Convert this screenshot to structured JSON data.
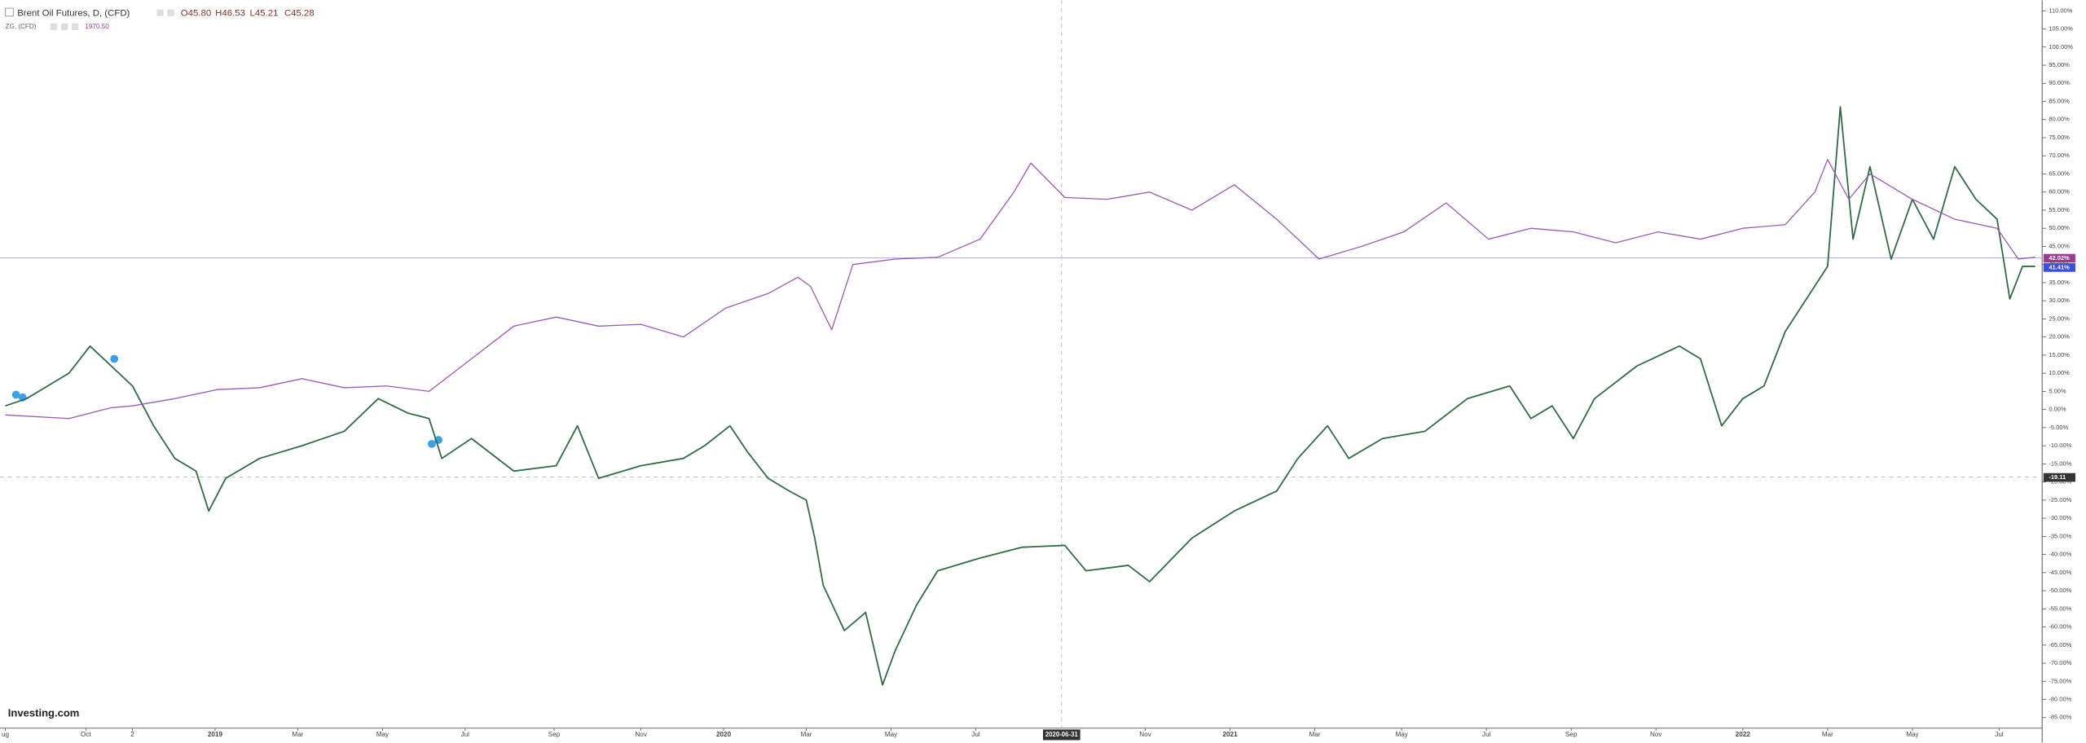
{
  "chart_data": {
    "type": "line",
    "title": "Brent Oil Futures, D, (CFD)",
    "ohlc": [
      "O45.80",
      "H46.53",
      "L45.21",
      "C45.28"
    ],
    "subtitle": "ZG, (CFD)",
    "subtitle_value": "1970.50",
    "logo": "Investing.com",
    "crosshair_date": "2020-06-31",
    "price_labels": [
      "42.02%",
      "41.41%",
      "-19.11"
    ],
    "xlim": [
      0,
      48
    ],
    "xticks": [
      {
        "value": 0,
        "label": "ug"
      },
      {
        "value": 1.9,
        "label": "Oct"
      },
      {
        "value": 3.0,
        "label": "2"
      },
      {
        "value": 4.95,
        "label": "2019"
      },
      {
        "value": 6.9,
        "label": "Mar"
      },
      {
        "value": 8.9,
        "label": "May"
      },
      {
        "value": 10.85,
        "label": "Jul"
      },
      {
        "value": 12.95,
        "label": "Sep"
      },
      {
        "value": 15.0,
        "label": "Nov"
      },
      {
        "value": 16.95,
        "label": "2020"
      },
      {
        "value": 18.9,
        "label": "Mar"
      },
      {
        "value": 20.9,
        "label": "May"
      },
      {
        "value": 22.9,
        "label": "Jul"
      },
      {
        "value": 26.9,
        "label": "Nov"
      },
      {
        "value": 28.9,
        "label": "2021"
      },
      {
        "value": 30.9,
        "label": "Mar"
      },
      {
        "value": 32.95,
        "label": "May"
      },
      {
        "value": 34.95,
        "label": "Jul"
      },
      {
        "value": 36.95,
        "label": "Sep"
      },
      {
        "value": 38.95,
        "label": "Nov"
      },
      {
        "value": 41.0,
        "label": "2022"
      },
      {
        "value": 43.0,
        "label": "Mar"
      },
      {
        "value": 45.0,
        "label": "May"
      },
      {
        "value": 47.05,
        "label": "Jul"
      }
    ],
    "ylim": [
      -85,
      110
    ],
    "yticks": [
      {
        "value": 110,
        "label": "110.00%"
      },
      {
        "value": 105,
        "label": "105.00%"
      },
      {
        "value": 100,
        "label": "100.00%"
      },
      {
        "value": 95,
        "label": "95.00%"
      },
      {
        "value": 90,
        "label": "90.00%"
      },
      {
        "value": 85,
        "label": "85.00%"
      },
      {
        "value": 80,
        "label": "80.00%"
      },
      {
        "value": 75,
        "label": "75.00%"
      },
      {
        "value": 70,
        "label": "70.00%"
      },
      {
        "value": 65,
        "label": "65.00%"
      },
      {
        "value": 60,
        "label": "60.00%"
      },
      {
        "value": 55,
        "label": "55.00%"
      },
      {
        "value": 50,
        "label": "50.00%"
      },
      {
        "value": 45,
        "label": "45.00%"
      },
      {
        "value": 40,
        "label": "40.00%"
      },
      {
        "value": 35,
        "label": "35.00%"
      },
      {
        "value": 30,
        "label": "30.00%"
      },
      {
        "value": 25,
        "label": "25.00%"
      },
      {
        "value": 20,
        "label": "20.00%"
      },
      {
        "value": 15,
        "label": "15.00%"
      },
      {
        "value": 10,
        "label": "10.00%"
      },
      {
        "value": 5,
        "label": "5.00%"
      },
      {
        "value": 0,
        "label": "0.00%"
      },
      {
        "value": -5,
        "label": "-5.00%"
      },
      {
        "value": -10,
        "label": "-10.00%"
      },
      {
        "value": -15,
        "label": "-15.00%"
      },
      {
        "value": -20,
        "label": "-20.00%"
      },
      {
        "value": -25,
        "label": "-25.00%"
      },
      {
        "value": -30,
        "label": "-30.00%"
      },
      {
        "value": -35,
        "label": "-35.00%"
      },
      {
        "value": -40,
        "label": "-40.00%"
      },
      {
        "value": -45,
        "label": "-45.00%"
      },
      {
        "value": -50,
        "label": "-50.00%"
      },
      {
        "value": -55,
        "label": "-55.00%"
      },
      {
        "value": -60,
        "label": "-60.00%"
      },
      {
        "value": -65,
        "label": "-65.00%"
      },
      {
        "value": -70,
        "label": "-70.00%"
      },
      {
        "value": -75,
        "label": "-75.00%"
      },
      {
        "value": -80,
        "label": "-80.00%"
      },
      {
        "value": -85,
        "label": "-85.00%"
      }
    ],
    "series": [
      {
        "name": "Brent Oil Futures, D, (CFD)",
        "color": "#2f6b45",
        "x": [
          0,
          0.5,
          1,
          1.5,
          2,
          2.5,
          3,
          3.5,
          4,
          4.5,
          4.8,
          5.2,
          6,
          7,
          8,
          8.8,
          9.5,
          10,
          10.3,
          11,
          12,
          13,
          13.5,
          14,
          15,
          16,
          16.5,
          17.1,
          17.5,
          18,
          18.5,
          18.9,
          19.1,
          19.3,
          19.8,
          20.3,
          20.7,
          21,
          21.5,
          22,
          23,
          24,
          25,
          25.5,
          26.5,
          27,
          28,
          29,
          30,
          30.5,
          31.2,
          31.7,
          32.5,
          33.5,
          34.5,
          35.5,
          36,
          36.5,
          37,
          37.5,
          38.5,
          39.5,
          40,
          40.5,
          41,
          41.5,
          42,
          42.5,
          43,
          43.3,
          43.6,
          44,
          44.5,
          45,
          45.5,
          46,
          46.5,
          47,
          47.3,
          47.6,
          47.9
        ],
        "values": [
          1,
          3,
          6.5,
          10,
          17.5,
          12,
          6.5,
          -4.5,
          -13.5,
          -17,
          -28,
          -19,
          -13.5,
          -10,
          -6,
          3,
          -1,
          -2.5,
          -13.5,
          -8,
          -17,
          -15.5,
          -4.5,
          -19,
          -15.5,
          -13.5,
          -10,
          -4.5,
          -11.5,
          -19,
          -22.5,
          -25,
          -35.5,
          -48.5,
          -61,
          -56,
          -76,
          -66.5,
          -54,
          -44.5,
          -41,
          -38,
          -37.5,
          -44.5,
          -43,
          -47.5,
          -35.5,
          -28,
          -22.5,
          -13.5,
          -4.5,
          -13.5,
          -8,
          -6,
          3,
          6.5,
          -2.5,
          1,
          -8,
          3,
          12,
          17.5,
          14,
          -4.5,
          3,
          6.5,
          21.5,
          30.5,
          39.5,
          83.5,
          47,
          67,
          41.5,
          58,
          47,
          67,
          58,
          52.5,
          30.5,
          39.5,
          39.5
        ]
      },
      {
        "name": "ZG, (CFD)",
        "color": "#9b59b6",
        "x": [
          0,
          1.5,
          2.5,
          3,
          4,
          5,
          6,
          7,
          8,
          9,
          10,
          11,
          12,
          13,
          14,
          15,
          16,
          17,
          18,
          18.7,
          19,
          19.5,
          20,
          21,
          22,
          23,
          23.8,
          24.2,
          25,
          26,
          27,
          28,
          29,
          30,
          31,
          32,
          33,
          34,
          35,
          36,
          37,
          38,
          39,
          40,
          41,
          42,
          42.7,
          43,
          43.5,
          44,
          45,
          46,
          47,
          47.5,
          47.9
        ],
        "values": [
          -1.5,
          -2.5,
          0.5,
          1,
          3,
          5.5,
          6,
          8.5,
          6,
          6.5,
          5,
          14,
          23,
          25.5,
          23,
          23.5,
          20,
          28,
          32,
          36.5,
          34,
          22,
          40,
          41.5,
          42,
          47,
          60,
          68,
          58.5,
          58,
          60,
          55,
          62,
          52.5,
          41.5,
          45,
          49,
          57,
          47,
          50,
          49,
          46,
          49,
          47,
          50,
          51,
          60,
          69,
          58,
          65,
          58,
          52.5,
          50,
          41.5,
          42.02
        ]
      }
    ]
  }
}
